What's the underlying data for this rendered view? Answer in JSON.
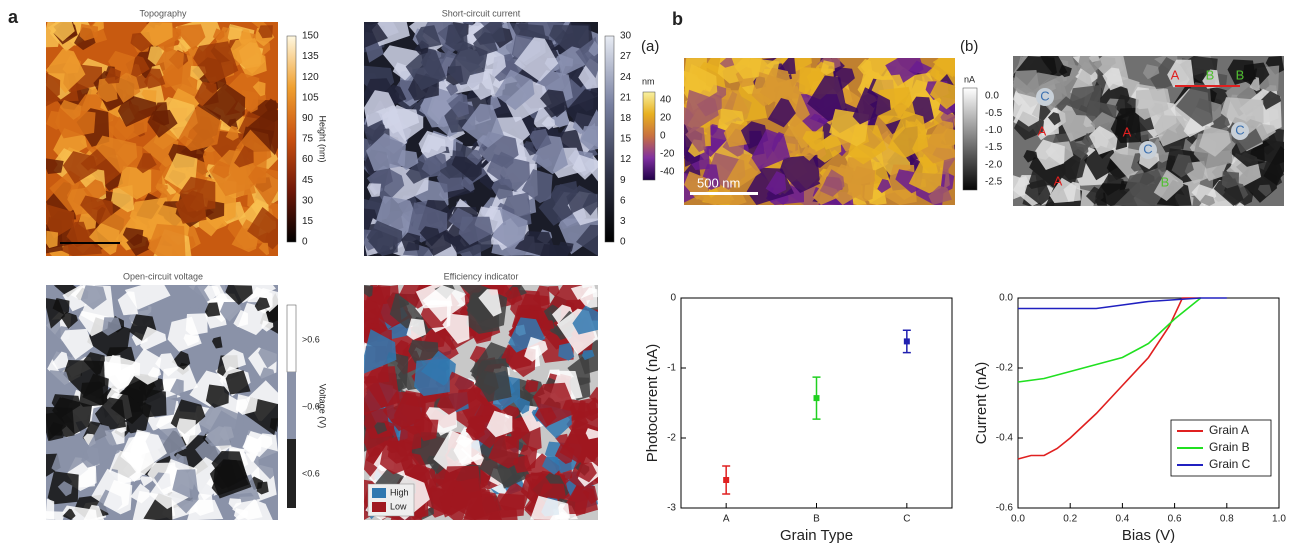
{
  "panel_labels": [
    "a",
    "b"
  ],
  "maps_a": [
    {
      "title": "Topography",
      "colorbar_label": "Height (nm)",
      "colorbar_ticks": [
        0,
        15,
        30,
        45,
        60,
        75,
        90,
        105,
        120,
        135,
        150
      ]
    },
    {
      "title": "Short-circuit current",
      "colorbar_ticks": [
        0,
        3,
        6,
        9,
        12,
        15,
        18,
        21,
        24,
        27,
        30
      ]
    },
    {
      "title": "Open-circuit voltage",
      "colorbar_label": "Voltage (V)",
      "colorbar_ticks": [
        "<0.6",
        "~0.6",
        ">0.6"
      ]
    },
    {
      "title": "Efficiency indicator",
      "legend": [
        "High",
        "Low"
      ]
    }
  ],
  "maps_b": [
    {
      "label": "(a)",
      "colorbar_label": "nm",
      "colorbar_ticks": [
        "-40",
        "-20",
        "0",
        "20",
        "40"
      ],
      "scale_bar": "500 nm"
    },
    {
      "label": "(b)",
      "colorbar_label": "nA",
      "colorbar_ticks": [
        "-2.5",
        "-2.0",
        "-1.5",
        "-1.0",
        "-0.5",
        "0.0"
      ],
      "grain_labels": [
        "A",
        "A",
        "A",
        "A",
        "B",
        "B",
        "B",
        "C",
        "C",
        "C"
      ]
    }
  ],
  "chart_data": [
    {
      "type": "scatter",
      "categories": [
        "A",
        "B",
        "C"
      ],
      "values": [
        -2.6,
        -1.43,
        -0.62
      ],
      "errors": [
        0.2,
        0.3,
        0.16
      ],
      "colors": [
        "#e02020",
        "#20d020",
        "#2020b0"
      ],
      "xlabel": "Grain Type",
      "ylabel": "Photocurrent (nA)",
      "ylim": [
        -3,
        0
      ],
      "yticks": [
        -3,
        -2,
        -1,
        0
      ]
    },
    {
      "type": "line",
      "xlabel": "Bias (V)",
      "ylabel": "Current (nA)",
      "xlim": [
        0,
        1
      ],
      "ylim": [
        -0.6,
        0
      ],
      "xticks": [
        {
          "value": 0,
          "label": "0.0"
        },
        {
          "value": 0.2,
          "label": "0.2"
        },
        {
          "value": 0.4,
          "label": "0.4"
        },
        {
          "value": 0.6,
          "label": "0.6"
        },
        {
          "value": 0.8,
          "label": "0.8"
        },
        {
          "value": 1,
          "label": "1.0"
        }
      ],
      "yticks": [
        {
          "value": -0.6,
          "label": "-0.6"
        },
        {
          "value": -0.4,
          "label": "-0.4"
        },
        {
          "value": -0.2,
          "label": "-0.2"
        },
        {
          "value": 0,
          "label": "0.0"
        }
      ],
      "legend": "lower right",
      "series": [
        {
          "name": "Grain A",
          "color": "#e02020",
          "x": [
            0,
            0.05,
            0.1,
            0.15,
            0.2,
            0.3,
            0.4,
            0.5,
            0.58,
            0.63,
            0.7
          ],
          "values": [
            -0.46,
            -0.45,
            -0.45,
            -0.43,
            -0.4,
            -0.33,
            -0.25,
            -0.17,
            -0.08,
            0,
            0
          ]
        },
        {
          "name": "Grain B",
          "color": "#20e020",
          "x": [
            0,
            0.1,
            0.2,
            0.3,
            0.4,
            0.5,
            0.6,
            0.7
          ],
          "values": [
            -0.24,
            -0.23,
            -0.21,
            -0.19,
            -0.17,
            -0.13,
            -0.06,
            0
          ]
        },
        {
          "name": "Grain C",
          "color": "#2020c0",
          "x": [
            0,
            0.3,
            0.4,
            0.5,
            0.6,
            0.7,
            0.8
          ],
          "values": [
            -0.03,
            -0.03,
            -0.02,
            -0.01,
            -0.005,
            0,
            0
          ]
        }
      ]
    }
  ]
}
